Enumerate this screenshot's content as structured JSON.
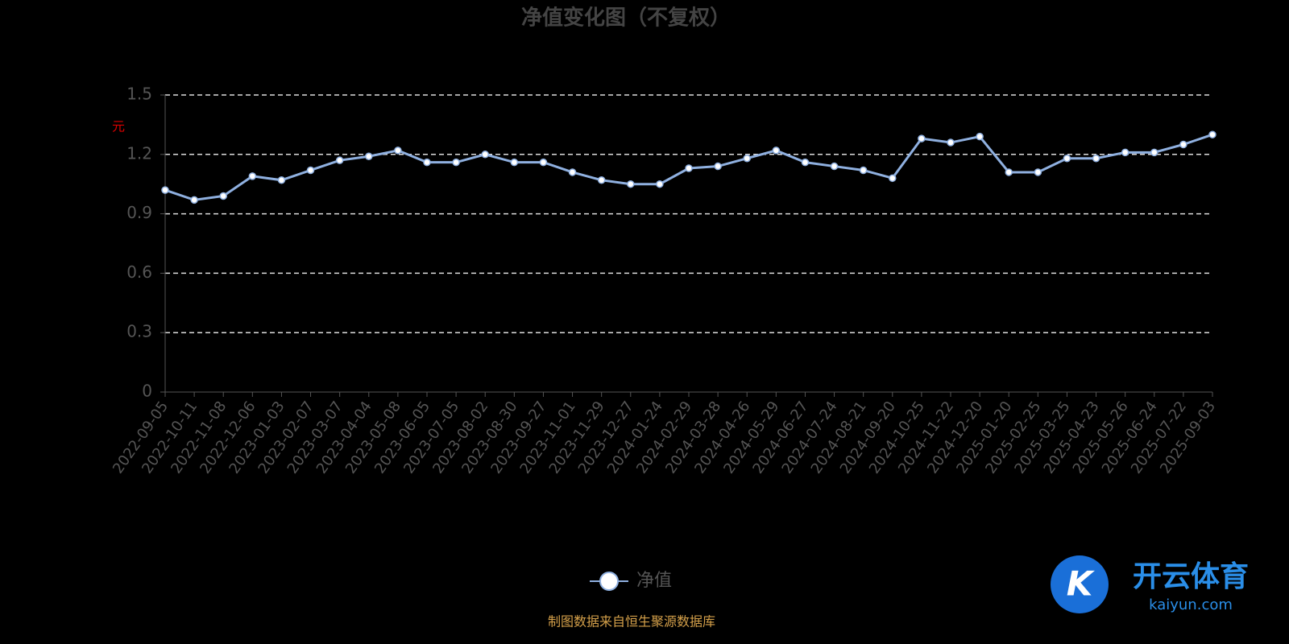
{
  "chart_data": {
    "type": "line",
    "title": "净值变化图（不复权）",
    "y_axis_label": "元",
    "categories": [
      "2022-09-05",
      "2022-10-11",
      "2022-11-08",
      "2022-12-06",
      "2023-01-03",
      "2023-02-07",
      "2023-03-07",
      "2023-04-04",
      "2023-05-08",
      "2023-06-05",
      "2023-07-05",
      "2023-08-02",
      "2023-08-30",
      "2023-09-27",
      "2023-11-01",
      "2023-11-29",
      "2023-12-27",
      "2024-01-24",
      "2024-02-29",
      "2024-03-28",
      "2024-04-26",
      "2024-05-29",
      "2024-06-27",
      "2024-07-24",
      "2024-08-21",
      "2024-09-20",
      "2024-10-25",
      "2024-11-22",
      "2024-12-20",
      "2025-01-20",
      "2025-02-25",
      "2025-03-25",
      "2025-04-23",
      "2025-05-26",
      "2025-06-24",
      "2025-07-22",
      "2025-09-03"
    ],
    "series": [
      {
        "name": "净值",
        "color": "#8fb0e0",
        "values": [
          1.02,
          0.97,
          0.99,
          1.09,
          1.07,
          1.12,
          1.17,
          1.19,
          1.22,
          1.16,
          1.16,
          1.2,
          1.16,
          1.16,
          1.11,
          1.07,
          1.05,
          1.05,
          1.13,
          1.14,
          1.18,
          1.22,
          1.16,
          1.14,
          1.12,
          1.08,
          1.28,
          1.26,
          1.29,
          1.11,
          1.11,
          1.18,
          1.18,
          1.21,
          1.21,
          1.25,
          1.3
        ]
      }
    ],
    "ylim": [
      0,
      1.5
    ],
    "yticks": [
      0,
      0.3,
      0.6,
      0.9,
      1.2,
      1.5
    ],
    "grid": true,
    "source": "制图数据来自恒生聚源数据库",
    "watermark": {
      "brand": "开云体育",
      "site": "kaiyun.com"
    }
  }
}
